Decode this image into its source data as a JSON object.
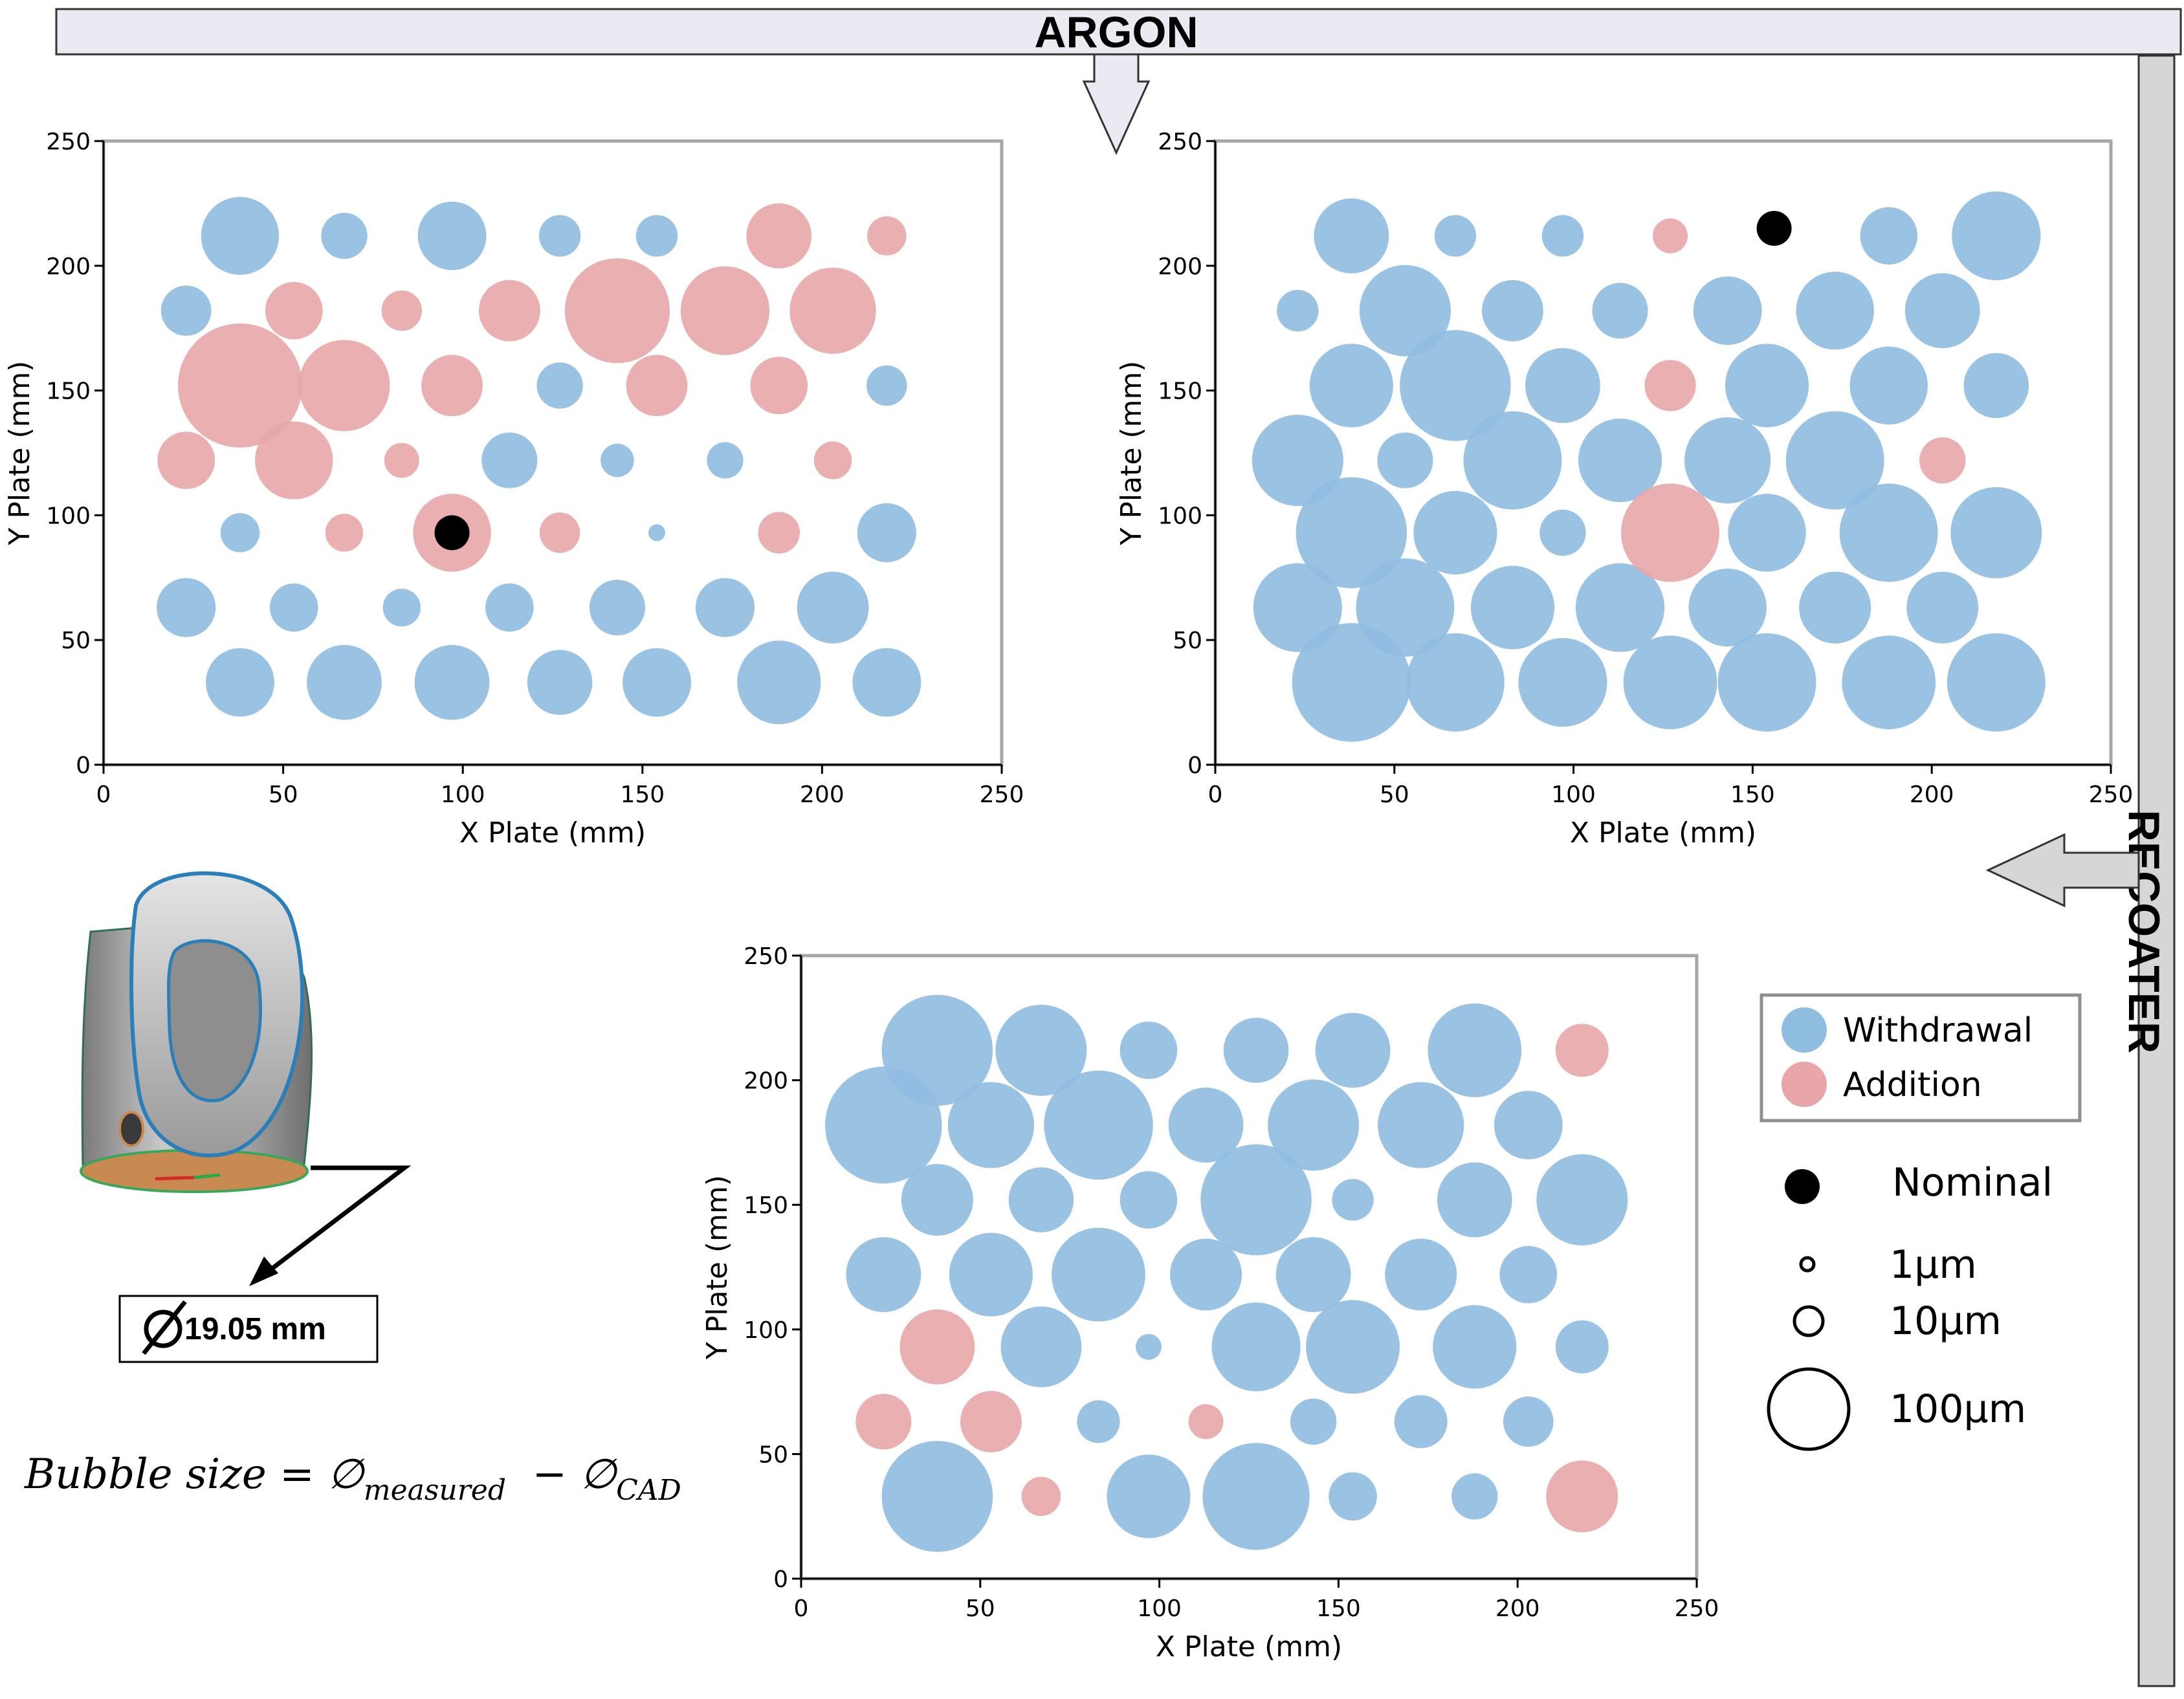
{
  "banner": {
    "argon_label": "ARGON",
    "recoater_label": "RECOATER"
  },
  "part": {
    "diameter_label": "19.05 mm"
  },
  "formula": {
    "lhs": "Bubble size = ",
    "phi1": "∅",
    "sub1": "measured",
    "minus": " − ",
    "phi2": "∅",
    "sub2": "CAD"
  },
  "legend": {
    "withdrawal_label": "Withdrawal",
    "addition_label": "Addition",
    "nominal_label": "Nominal",
    "size_1_label": "1µm",
    "size_10_label": "10µm",
    "size_100_label": "100µm"
  },
  "colors": {
    "withdrawal": "#8fbde0",
    "addition": "#e8a6a8",
    "nominal": "#000000",
    "frame": "#a6a6a6",
    "banner_fill": "#ede9f3"
  },
  "chart_data": [
    {
      "type": "scatter",
      "title": "",
      "xlabel": "X Plate (mm)",
      "ylabel": "Y Plate (mm)",
      "xlim": [
        0,
        250
      ],
      "ylim": [
        0,
        250
      ],
      "xticks": [
        "0",
        "50",
        "100",
        "150",
        "200",
        "250"
      ],
      "yticks": [
        "0",
        "50",
        "100",
        "150",
        "200",
        "250"
      ],
      "bubble_size_unit": "µm",
      "nominal": [
        {
          "x": 97,
          "y": 93
        }
      ],
      "series": [
        {
          "name": "Withdrawal",
          "points": [
            {
              "x": 38,
              "y": 212,
              "size": 60
            },
            {
              "x": 67,
              "y": 212,
              "size": 18
            },
            {
              "x": 97,
              "y": 212,
              "size": 45
            },
            {
              "x": 127,
              "y": 212,
              "size": 14
            },
            {
              "x": 154,
              "y": 212,
              "size": 14
            },
            {
              "x": 23,
              "y": 182,
              "size": 22
            },
            {
              "x": 127,
              "y": 152,
              "size": 18
            },
            {
              "x": 218,
              "y": 152,
              "size": 13
            },
            {
              "x": 113,
              "y": 122,
              "size": 28
            },
            {
              "x": 143,
              "y": 122,
              "size": 8
            },
            {
              "x": 173,
              "y": 122,
              "size": 10
            },
            {
              "x": 38,
              "y": 93,
              "size": 12
            },
            {
              "x": 154,
              "y": 93,
              "size": 1
            },
            {
              "x": 218,
              "y": 93,
              "size": 32
            },
            {
              "x": 23,
              "y": 63,
              "size": 32
            },
            {
              "x": 53,
              "y": 63,
              "size": 20
            },
            {
              "x": 83,
              "y": 63,
              "size": 11
            },
            {
              "x": 113,
              "y": 63,
              "size": 20
            },
            {
              "x": 143,
              "y": 63,
              "size": 28
            },
            {
              "x": 173,
              "y": 63,
              "size": 32
            },
            {
              "x": 203,
              "y": 63,
              "size": 50
            },
            {
              "x": 38,
              "y": 33,
              "size": 45
            },
            {
              "x": 67,
              "y": 33,
              "size": 55
            },
            {
              "x": 97,
              "y": 33,
              "size": 55
            },
            {
              "x": 127,
              "y": 33,
              "size": 40
            },
            {
              "x": 154,
              "y": 33,
              "size": 45
            },
            {
              "x": 188,
              "y": 33,
              "size": 70
            },
            {
              "x": 218,
              "y": 33,
              "size": 45
            }
          ]
        },
        {
          "name": "Addition",
          "points": [
            {
              "x": 188,
              "y": 212,
              "size": 40
            },
            {
              "x": 218,
              "y": 212,
              "size": 12
            },
            {
              "x": 53,
              "y": 182,
              "size": 30
            },
            {
              "x": 83,
              "y": 182,
              "size": 13
            },
            {
              "x": 113,
              "y": 182,
              "size": 35
            },
            {
              "x": 143,
              "y": 182,
              "size": 115
            },
            {
              "x": 173,
              "y": 182,
              "size": 80
            },
            {
              "x": 203,
              "y": 182,
              "size": 75
            },
            {
              "x": 38,
              "y": 152,
              "size": 165
            },
            {
              "x": 67,
              "y": 152,
              "size": 85
            },
            {
              "x": 97,
              "y": 152,
              "size": 35
            },
            {
              "x": 154,
              "y": 152,
              "size": 35
            },
            {
              "x": 188,
              "y": 152,
              "size": 30
            },
            {
              "x": 23,
              "y": 122,
              "size": 30
            },
            {
              "x": 53,
              "y": 122,
              "size": 60
            },
            {
              "x": 83,
              "y": 122,
              "size": 9
            },
            {
              "x": 203,
              "y": 122,
              "size": 11
            },
            {
              "x": 67,
              "y": 93,
              "size": 11
            },
            {
              "x": 97,
              "y": 93,
              "size": 60
            },
            {
              "x": 127,
              "y": 93,
              "size": 13
            },
            {
              "x": 188,
              "y": 93,
              "size": 14
            }
          ]
        }
      ]
    },
    {
      "type": "scatter",
      "title": "",
      "xlabel": "X Plate (mm)",
      "ylabel": "Y Plate (mm)",
      "xlim": [
        0,
        250
      ],
      "ylim": [
        0,
        250
      ],
      "xticks": [
        "0",
        "50",
        "100",
        "150",
        "200",
        "250"
      ],
      "yticks": [
        "0",
        "50",
        "100",
        "150",
        "200",
        "250"
      ],
      "bubble_size_unit": "µm",
      "nominal": [
        {
          "x": 156,
          "y": 215
        }
      ],
      "series": [
        {
          "name": "Withdrawal",
          "points": [
            {
              "x": 38,
              "y": 212,
              "size": 55
            },
            {
              "x": 67,
              "y": 212,
              "size": 14
            },
            {
              "x": 97,
              "y": 212,
              "size": 14
            },
            {
              "x": 188,
              "y": 212,
              "size": 30
            },
            {
              "x": 218,
              "y": 212,
              "size": 80
            },
            {
              "x": 23,
              "y": 182,
              "size": 14
            },
            {
              "x": 53,
              "y": 182,
              "size": 85
            },
            {
              "x": 83,
              "y": 182,
              "size": 35
            },
            {
              "x": 113,
              "y": 182,
              "size": 28
            },
            {
              "x": 143,
              "y": 182,
              "size": 45
            },
            {
              "x": 173,
              "y": 182,
              "size": 60
            },
            {
              "x": 203,
              "y": 182,
              "size": 55
            },
            {
              "x": 38,
              "y": 152,
              "size": 70
            },
            {
              "x": 67,
              "y": 152,
              "size": 130
            },
            {
              "x": 97,
              "y": 152,
              "size": 55
            },
            {
              "x": 154,
              "y": 152,
              "size": 70
            },
            {
              "x": 188,
              "y": 152,
              "size": 60
            },
            {
              "x": 218,
              "y": 152,
              "size": 40
            },
            {
              "x": 23,
              "y": 122,
              "size": 85
            },
            {
              "x": 53,
              "y": 122,
              "size": 28
            },
            {
              "x": 83,
              "y": 122,
              "size": 100
            },
            {
              "x": 113,
              "y": 122,
              "size": 70
            },
            {
              "x": 143,
              "y": 122,
              "size": 75
            },
            {
              "x": 173,
              "y": 122,
              "size": 100
            },
            {
              "x": 38,
              "y": 93,
              "size": 130
            },
            {
              "x": 67,
              "y": 93,
              "size": 70
            },
            {
              "x": 97,
              "y": 93,
              "size": 18
            },
            {
              "x": 154,
              "y": 93,
              "size": 60
            },
            {
              "x": 188,
              "y": 93,
              "size": 100
            },
            {
              "x": 218,
              "y": 93,
              "size": 85
            },
            {
              "x": 23,
              "y": 63,
              "size": 80
            },
            {
              "x": 53,
              "y": 63,
              "size": 100
            },
            {
              "x": 83,
              "y": 63,
              "size": 70
            },
            {
              "x": 113,
              "y": 63,
              "size": 80
            },
            {
              "x": 143,
              "y": 63,
              "size": 60
            },
            {
              "x": 173,
              "y": 63,
              "size": 50
            },
            {
              "x": 203,
              "y": 63,
              "size": 50
            },
            {
              "x": 38,
              "y": 33,
              "size": 150
            },
            {
              "x": 67,
              "y": 33,
              "size": 100
            },
            {
              "x": 97,
              "y": 33,
              "size": 80
            },
            {
              "x": 127,
              "y": 33,
              "size": 90
            },
            {
              "x": 154,
              "y": 33,
              "size": 100
            },
            {
              "x": 188,
              "y": 33,
              "size": 90
            },
            {
              "x": 218,
              "y": 33,
              "size": 100
            }
          ]
        },
        {
          "name": "Addition",
          "points": [
            {
              "x": 127,
              "y": 212,
              "size": 9
            },
            {
              "x": 127,
              "y": 152,
              "size": 23
            },
            {
              "x": 203,
              "y": 122,
              "size": 18
            },
            {
              "x": 127,
              "y": 93,
              "size": 100
            }
          ]
        }
      ]
    },
    {
      "type": "scatter",
      "title": "",
      "xlabel": "X Plate (mm)",
      "ylabel": "Y Plate (mm)",
      "xlim": [
        0,
        250
      ],
      "ylim": [
        0,
        250
      ],
      "xticks": [
        "0",
        "50",
        "100",
        "150",
        "200",
        "250"
      ],
      "yticks": [
        "0",
        "50",
        "100",
        "150",
        "200",
        "250"
      ],
      "bubble_size_unit": "µm",
      "nominal": [],
      "series": [
        {
          "name": "Withdrawal",
          "points": [
            {
              "x": 38,
              "y": 212,
              "size": 130
            },
            {
              "x": 67,
              "y": 212,
              "size": 85
            },
            {
              "x": 97,
              "y": 212,
              "size": 30
            },
            {
              "x": 127,
              "y": 212,
              "size": 40
            },
            {
              "x": 154,
              "y": 212,
              "size": 55
            },
            {
              "x": 188,
              "y": 212,
              "size": 90
            },
            {
              "x": 23,
              "y": 182,
              "size": 145
            },
            {
              "x": 53,
              "y": 182,
              "size": 75
            },
            {
              "x": 83,
              "y": 182,
              "size": 125
            },
            {
              "x": 113,
              "y": 182,
              "size": 55
            },
            {
              "x": 143,
              "y": 182,
              "size": 85
            },
            {
              "x": 173,
              "y": 182,
              "size": 75
            },
            {
              "x": 203,
              "y": 182,
              "size": 45
            },
            {
              "x": 38,
              "y": 152,
              "size": 50
            },
            {
              "x": 67,
              "y": 152,
              "size": 40
            },
            {
              "x": 97,
              "y": 152,
              "size": 30
            },
            {
              "x": 127,
              "y": 152,
              "size": 130
            },
            {
              "x": 154,
              "y": 152,
              "size": 14
            },
            {
              "x": 188,
              "y": 152,
              "size": 55
            },
            {
              "x": 218,
              "y": 152,
              "size": 85
            },
            {
              "x": 23,
              "y": 122,
              "size": 55
            },
            {
              "x": 53,
              "y": 122,
              "size": 70
            },
            {
              "x": 83,
              "y": 122,
              "size": 90
            },
            {
              "x": 113,
              "y": 122,
              "size": 50
            },
            {
              "x": 143,
              "y": 122,
              "size": 55
            },
            {
              "x": 173,
              "y": 122,
              "size": 50
            },
            {
              "x": 203,
              "y": 122,
              "size": 30
            },
            {
              "x": 67,
              "y": 93,
              "size": 65
            },
            {
              "x": 97,
              "y": 93,
              "size": 4
            },
            {
              "x": 127,
              "y": 93,
              "size": 80
            },
            {
              "x": 154,
              "y": 93,
              "size": 90
            },
            {
              "x": 188,
              "y": 93,
              "size": 70
            },
            {
              "x": 218,
              "y": 93,
              "size": 25
            },
            {
              "x": 83,
              "y": 63,
              "size": 15
            },
            {
              "x": 143,
              "y": 63,
              "size": 18
            },
            {
              "x": 173,
              "y": 63,
              "size": 25
            },
            {
              "x": 203,
              "y": 63,
              "size": 22
            },
            {
              "x": 38,
              "y": 33,
              "size": 130
            },
            {
              "x": 97,
              "y": 33,
              "size": 70
            },
            {
              "x": 127,
              "y": 33,
              "size": 120
            },
            {
              "x": 154,
              "y": 33,
              "size": 20
            },
            {
              "x": 188,
              "y": 33,
              "size": 18
            }
          ]
        },
        {
          "name": "Addition",
          "points": [
            {
              "x": 218,
              "y": 212,
              "size": 25
            },
            {
              "x": 38,
              "y": 93,
              "size": 55
            },
            {
              "x": 23,
              "y": 63,
              "size": 28
            },
            {
              "x": 53,
              "y": 63,
              "size": 35
            },
            {
              "x": 113,
              "y": 63,
              "size": 9
            },
            {
              "x": 67,
              "y": 33,
              "size": 12
            },
            {
              "x": 218,
              "y": 33,
              "size": 50
            }
          ]
        }
      ]
    }
  ]
}
